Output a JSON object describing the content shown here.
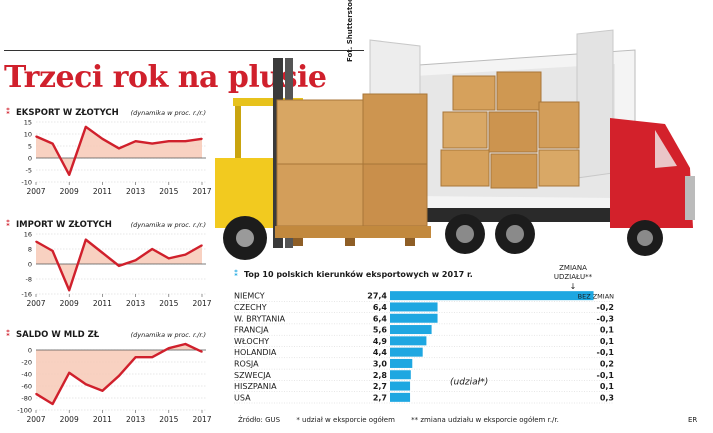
{
  "title": "Trzeci rok na plusie",
  "photo_credit": "Fot. Shutterstock",
  "colors": {
    "accent": "#d0202c",
    "fill": "#f7c9b6",
    "bar": "#1ea7e1",
    "dark": "#1a1a1a"
  },
  "chart_data": [
    {
      "type": "area",
      "title": "Eksport w złotych",
      "subtitle": "(dynamika w proc. r./r.)",
      "yticks": [
        15,
        10,
        5,
        0,
        -5,
        -10
      ],
      "ylim": [
        -10,
        15
      ],
      "xticks": [
        "2007",
        "2009",
        "2011",
        "2013",
        "2015",
        "2017"
      ],
      "x": [
        2007,
        2008,
        2009,
        2010,
        2011,
        2012,
        2013,
        2014,
        2015,
        2016,
        2017
      ],
      "values": [
        9,
        6,
        -7,
        13,
        8,
        4,
        7,
        6,
        7,
        7,
        8
      ]
    },
    {
      "type": "area",
      "title": "Import w złotych",
      "subtitle": "(dynamika w proc. r./r.)",
      "yticks": [
        16,
        8,
        0,
        -8,
        -16
      ],
      "ylim": [
        -16,
        16
      ],
      "xticks": [
        "2007",
        "2009",
        "2011",
        "2013",
        "2015",
        "2017"
      ],
      "x": [
        2007,
        2008,
        2009,
        2010,
        2011,
        2012,
        2013,
        2014,
        2015,
        2016,
        2017
      ],
      "values": [
        12,
        7,
        -14,
        13,
        6,
        -1,
        2,
        8,
        3,
        5,
        10
      ]
    },
    {
      "type": "area",
      "title": "Saldo w mld zł",
      "subtitle": "(dynamika w proc. r./r.)",
      "yticks": [
        0,
        -20,
        -40,
        -60,
        -80,
        -100
      ],
      "ylim": [
        -100,
        10
      ],
      "xticks": [
        "2007",
        "2009",
        "2011",
        "2013",
        "2015",
        "2017"
      ],
      "x": [
        2007,
        2008,
        2009,
        2010,
        2011,
        2012,
        2013,
        2014,
        2015,
        2016,
        2017
      ],
      "values": [
        -73,
        -90,
        -38,
        -57,
        -68,
        -43,
        -12,
        -12,
        3,
        10,
        -3
      ]
    },
    {
      "type": "bar",
      "title": "Top 10 polskich kierunków eksportowych w 2017 r.",
      "side_header": "ZMIANA UDZIAŁU**",
      "categories": [
        "NIEMCY",
        "CZECHY",
        "W. BRYTANIA",
        "FRANCJA",
        "WŁOCHY",
        "HOLANDIA",
        "ROSJA",
        "SZWECJA",
        "HISZPANIA",
        "USA"
      ],
      "values": [
        27.4,
        6.4,
        6.4,
        5.6,
        4.9,
        4.4,
        3.0,
        2.8,
        2.7,
        2.7
      ],
      "value_labels": [
        "27,4",
        "6,4",
        "6,4",
        "5,6",
        "4,9",
        "4,4",
        "3,0",
        "2,8",
        "2,7",
        "2,7"
      ],
      "changes": [
        "BEZ ZMIAN",
        "-0,2",
        "-0,3",
        "0,1",
        "0,1",
        "-0,1",
        "0,2",
        "-0,1",
        "0,1",
        "0,3"
      ],
      "annotation": "(udział*)",
      "xlim": [
        0,
        28
      ]
    }
  ],
  "footer": {
    "source": "Źródło: GUS",
    "note1": "* udział w eksporcie ogółem",
    "note2": "** zmiana udziału w eksporcie ogółem r./r.",
    "credit": "ER"
  }
}
